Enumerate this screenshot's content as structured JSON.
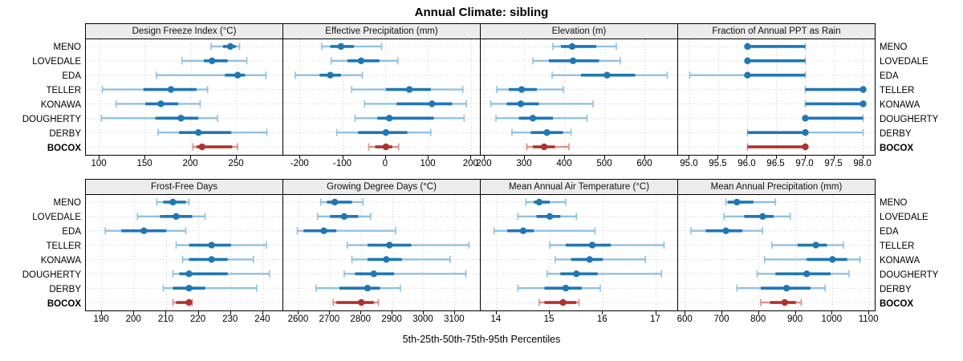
{
  "title": "Annual Climate: sibling",
  "caption": "5th-25th-50th-75th-95th Percentiles",
  "sites": [
    "MENO",
    "LOVEDALE",
    "EDA",
    "TELLER",
    "KONAWA",
    "DOUGHERTY",
    "DERBY",
    "BOCOX"
  ],
  "highlight_site": "BOCOX",
  "colors": {
    "series_main": "#1f77b4",
    "series_light": "#8fc1e0",
    "highlight_main": "#b2302d",
    "highlight_light": "#d8918e",
    "strip_bg": "#ececec",
    "grid": "#c9c9c9",
    "border": "#000000"
  },
  "chart_data": {
    "type": "dotplot-percentiles",
    "percentile_levels": [
      5,
      25,
      50,
      75,
      95
    ],
    "layout": {
      "rows": 2,
      "cols": 4
    },
    "legend_note": "blue = sibling sites, red = highlighted site BOCOX",
    "panels": [
      {
        "title": "Design Freeze Index (°C)",
        "xlim": [
          85,
          300
        ],
        "ticks": [
          100,
          150,
          200,
          250
        ],
        "tick_labels": [
          "100",
          "150",
          "200",
          "250"
        ],
        "values": [
          [
            222,
            235,
            243,
            249,
            253
          ],
          [
            190,
            214,
            223,
            240,
            261
          ],
          [
            162,
            237,
            251,
            259,
            282
          ],
          [
            103,
            148,
            178,
            206,
            218
          ],
          [
            118,
            150,
            167,
            186,
            210
          ],
          [
            102,
            161,
            189,
            208,
            229
          ],
          [
            164,
            187,
            208,
            244,
            283
          ],
          [
            202,
            206,
            212,
            245,
            251
          ]
        ]
      },
      {
        "title": "Effective Precipitation (mm)",
        "xlim": [
          -240,
          220
        ],
        "ticks": [
          -200,
          -100,
          0,
          100,
          200
        ],
        "tick_labels": [
          "-200",
          "-100",
          "0",
          "100",
          "200"
        ],
        "values": [
          [
            -150,
            -130,
            -105,
            -75,
            -10
          ],
          [
            -128,
            -90,
            -58,
            -15,
            28
          ],
          [
            -212,
            -155,
            -130,
            -105,
            -55
          ],
          [
            -80,
            0,
            55,
            105,
            180
          ],
          [
            -50,
            25,
            108,
            155,
            188
          ],
          [
            -72,
            -20,
            8,
            112,
            183
          ],
          [
            -115,
            -65,
            0,
            50,
            105
          ],
          [
            -40,
            -25,
            0,
            15,
            30
          ]
        ]
      },
      {
        "title": "Elevation (m)",
        "xlim": [
          190,
          680
        ],
        "ticks": [
          200,
          300,
          400,
          500,
          600
        ],
        "tick_labels": [
          "200",
          "300",
          "400",
          "500",
          "600"
        ],
        "values": [
          [
            370,
            390,
            418,
            478,
            528
          ],
          [
            320,
            360,
            420,
            485,
            538
          ],
          [
            368,
            440,
            505,
            575,
            655
          ],
          [
            230,
            260,
            292,
            330,
            396
          ],
          [
            215,
            255,
            290,
            335,
            470
          ],
          [
            228,
            285,
            320,
            370,
            455
          ],
          [
            268,
            315,
            355,
            395,
            415
          ],
          [
            305,
            320,
            348,
            375,
            410
          ]
        ]
      },
      {
        "title": "Fraction of Annual PPT as Rain",
        "xlim": [
          94.8,
          98.2
        ],
        "ticks": [
          95.0,
          95.5,
          96.0,
          96.5,
          97.0,
          97.5,
          98.0
        ],
        "tick_labels": [
          "95.0",
          "95.5",
          "96.0",
          "96.5",
          "97.0",
          "97.5",
          "98.0"
        ],
        "values": [
          [
            96,
            96,
            96,
            97,
            97
          ],
          [
            96,
            96,
            96,
            97,
            97
          ],
          [
            95,
            96,
            96,
            97,
            97
          ],
          [
            97,
            97,
            98,
            98,
            98
          ],
          [
            97,
            97,
            98,
            98,
            98
          ],
          [
            97,
            97,
            97,
            98,
            98
          ],
          [
            96,
            96,
            97,
            97,
            98
          ],
          [
            96,
            96,
            97,
            97,
            97
          ]
        ]
      },
      {
        "title": "Frost-Free Days",
        "xlim": [
          185,
          246
        ],
        "ticks": [
          190,
          200,
          210,
          220,
          230,
          240
        ],
        "tick_labels": [
          "190",
          "200",
          "210",
          "220",
          "230",
          "240"
        ],
        "values": [
          [
            207,
            209,
            212,
            216,
            217
          ],
          [
            201,
            208,
            213,
            218,
            222
          ],
          [
            191,
            196,
            203,
            210,
            216
          ],
          [
            213,
            217,
            224,
            230,
            241
          ],
          [
            215,
            217,
            224,
            229,
            237
          ],
          [
            212,
            214,
            217,
            229,
            242
          ],
          [
            209,
            212,
            217,
            222,
            238
          ],
          [
            212,
            213,
            217,
            217,
            218
          ]
        ]
      },
      {
        "title": "Growing Degree Days (°C)",
        "xlim": [
          2550,
          3180
        ],
        "ticks": [
          2600,
          2700,
          2800,
          2900,
          3000,
          3100
        ],
        "tick_labels": [
          "2600",
          "2700",
          "2800",
          "2900",
          "3000",
          "3100"
        ],
        "values": [
          [
            2670,
            2690,
            2715,
            2770,
            2805
          ],
          [
            2660,
            2700,
            2745,
            2790,
            2830
          ],
          [
            2595,
            2615,
            2680,
            2720,
            2910
          ],
          [
            2755,
            2820,
            2890,
            2960,
            3145
          ],
          [
            2770,
            2820,
            2880,
            2930,
            3085
          ],
          [
            2745,
            2780,
            2840,
            2905,
            3135
          ],
          [
            2655,
            2730,
            2820,
            2860,
            2925
          ],
          [
            2710,
            2720,
            2800,
            2840,
            2855
          ]
        ]
      },
      {
        "title": "Mean Annual Air Temperature (°C)",
        "xlim": [
          13.7,
          17.4
        ],
        "ticks": [
          14,
          15,
          16,
          17
        ],
        "tick_labels": [
          "14",
          "15",
          "16",
          "17"
        ],
        "values": [
          [
            14.55,
            14.7,
            14.8,
            15.0,
            15.3
          ],
          [
            14.4,
            14.75,
            15.0,
            15.2,
            15.5
          ],
          [
            13.95,
            14.2,
            14.5,
            14.7,
            15.85
          ],
          [
            15.0,
            15.3,
            15.8,
            16.15,
            17.15
          ],
          [
            15.1,
            15.4,
            15.75,
            16.0,
            16.8
          ],
          [
            14.95,
            15.2,
            15.5,
            15.9,
            17.1
          ],
          [
            14.4,
            14.9,
            15.3,
            15.6,
            15.95
          ],
          [
            14.8,
            14.9,
            15.25,
            15.5,
            15.55
          ]
        ]
      },
      {
        "title": "Mean Annual Precipitation (mm)",
        "xlim": [
          580,
          1115
        ],
        "ticks": [
          600,
          700,
          800,
          900,
          1000,
          1100
        ],
        "tick_labels": [
          "600",
          "700",
          "800",
          "900",
          "1000",
          "1100"
        ],
        "values": [
          [
            710,
            715,
            740,
            785,
            845
          ],
          [
            705,
            760,
            810,
            840,
            885
          ],
          [
            615,
            655,
            710,
            755,
            810
          ],
          [
            835,
            905,
            955,
            985,
            1030
          ],
          [
            815,
            930,
            1000,
            1040,
            1075
          ],
          [
            795,
            845,
            930,
            995,
            1045
          ],
          [
            740,
            805,
            875,
            940,
            980
          ],
          [
            805,
            830,
            870,
            900,
            915
          ]
        ]
      }
    ]
  }
}
